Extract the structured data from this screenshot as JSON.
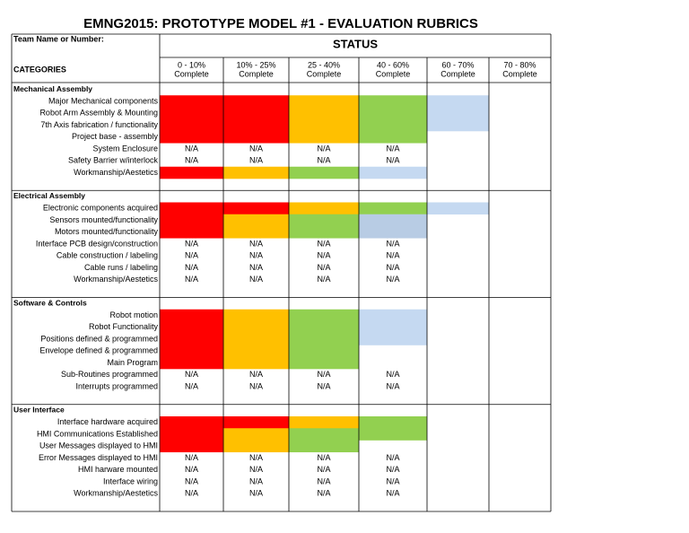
{
  "title": "EMNG2015: PROTOTYPE MODEL #1 - EVALUATION RUBRICS",
  "team_label": "Team Name or Number:",
  "status": "STATUS",
  "categories_label": "CATEGORIES",
  "columns": [
    [
      "0 - 10%",
      "Complete"
    ],
    [
      "10% - 25%",
      "Complete"
    ],
    [
      "25 - 40%",
      "Complete"
    ],
    [
      "40 - 60%",
      "Complete"
    ],
    [
      "60 - 70%",
      "Complete"
    ],
    [
      "70 - 80%",
      "Complete"
    ]
  ],
  "sections": [
    {
      "title": "Mechanical Assembly",
      "rows": [
        {
          "label": "Major Mechanical components",
          "fills": [
            "#ff0000",
            "#ff0000",
            "#ffc000",
            "#92d050",
            "#c5d9f1",
            null
          ]
        },
        {
          "label": "Robot Arm Assembly & Mounting",
          "fills": [
            "#ff0000",
            "#ff0000",
            "#ffc000",
            "#92d050",
            "#c5d9f1",
            null
          ]
        },
        {
          "label": "7th Axis fabrication / functionality",
          "fills": [
            "#ff0000",
            "#ff0000",
            "#ffc000",
            "#92d050",
            "#c5d9f1",
            null
          ]
        },
        {
          "label": "Project base  - assembly",
          "fills": [
            "#ff0000",
            "#ff0000",
            "#ffc000",
            "#92d050",
            null,
            null
          ]
        },
        {
          "label": "System Enclosure",
          "cells": [
            "N/A",
            "N/A",
            "N/A",
            "N/A"
          ]
        },
        {
          "label": "Safety Barrier w/interlock",
          "cells": [
            "N/A",
            "N/A",
            "N/A",
            "N/A"
          ]
        },
        {
          "label": "Workmanship/Aestetics",
          "fills": [
            "#ff0000",
            "#ffc000",
            "#92d050",
            "#c5d9f1",
            null,
            null
          ]
        }
      ]
    },
    {
      "title": "Electrical Assembly",
      "rows": [
        {
          "label": "Electronic components acquired",
          "fills": [
            "#ff0000",
            "#ff0000",
            "#ffc000",
            "#92d050",
            "#c5d9f1",
            null
          ]
        },
        {
          "label": "Sensors mounted/functionality",
          "fills": [
            "#ff0000",
            "#ffc000",
            "#92d050",
            "#b8cce4",
            null,
            null
          ]
        },
        {
          "label": "Motors mounted/functionality",
          "fills": [
            "#ff0000",
            "#ffc000",
            "#92d050",
            "#b8cce4",
            null,
            null
          ]
        },
        {
          "label": "Interface PCB design/construction",
          "cells": [
            "N/A",
            "N/A",
            "N/A",
            "N/A"
          ]
        },
        {
          "label": "Cable construction / labeling",
          "cells": [
            "N/A",
            "N/A",
            "N/A",
            "N/A"
          ]
        },
        {
          "label": "Cable runs / labeling",
          "cells": [
            "N/A",
            "N/A",
            "N/A",
            "N/A"
          ]
        },
        {
          "label": "Workmanship/Aestetics",
          "cells": [
            "N/A",
            "N/A",
            "N/A",
            "N/A"
          ]
        }
      ]
    },
    {
      "title": "Software & Controls",
      "rows": [
        {
          "label": "Robot motion",
          "fills": [
            "#ff0000",
            "#ffc000",
            "#92d050",
            "#c5d9f1",
            null,
            null
          ]
        },
        {
          "label": "Robot Functionality",
          "fills": [
            "#ff0000",
            "#ffc000",
            "#92d050",
            "#c5d9f1",
            null,
            null
          ]
        },
        {
          "label": "Positions defined & programmed",
          "fills": [
            "#ff0000",
            "#ffc000",
            "#92d050",
            "#c5d9f1",
            null,
            null
          ]
        },
        {
          "label": "Envelope defined & programmed",
          "fills": [
            "#ff0000",
            "#ffc000",
            "#92d050",
            null,
            null,
            null
          ]
        },
        {
          "label": "Main Program",
          "fills": [
            "#ff0000",
            "#ffc000",
            "#92d050",
            null,
            null,
            null
          ]
        },
        {
          "label": "Sub-Routines programmed",
          "cells": [
            "N/A",
            "N/A",
            "N/A",
            "N/A"
          ]
        },
        {
          "label": "Interrupts programmed",
          "cells": [
            "N/A",
            "N/A",
            "N/A",
            "N/A"
          ]
        }
      ]
    },
    {
      "title": "User Interface",
      "rows": [
        {
          "label": "Interface hardware acquired",
          "fills": [
            "#ff0000",
            "#ff0000",
            "#ffc000",
            "#92d050",
            null,
            null
          ]
        },
        {
          "label": "HMI Communications Established",
          "fills": [
            "#ff0000",
            "#ffc000",
            "#92d050",
            "#92d050",
            null,
            null
          ]
        },
        {
          "label": "User Messages displayed to HMI",
          "fills": [
            "#ff0000",
            "#ffc000",
            "#92d050",
            null,
            null,
            null
          ]
        },
        {
          "label": "Error Messages displayed to HMI",
          "cells": [
            "N/A",
            "N/A",
            "N/A",
            "N/A"
          ]
        },
        {
          "label": "HMI harware mounted",
          "cells": [
            "N/A",
            "N/A",
            "N/A",
            "N/A"
          ]
        },
        {
          "label": "Interface wiring",
          "cells": [
            "N/A",
            "N/A",
            "N/A",
            "N/A"
          ]
        },
        {
          "label": "Workmanship/Aestetics",
          "cells": [
            "N/A",
            "N/A",
            "N/A",
            "N/A"
          ]
        }
      ]
    }
  ]
}
